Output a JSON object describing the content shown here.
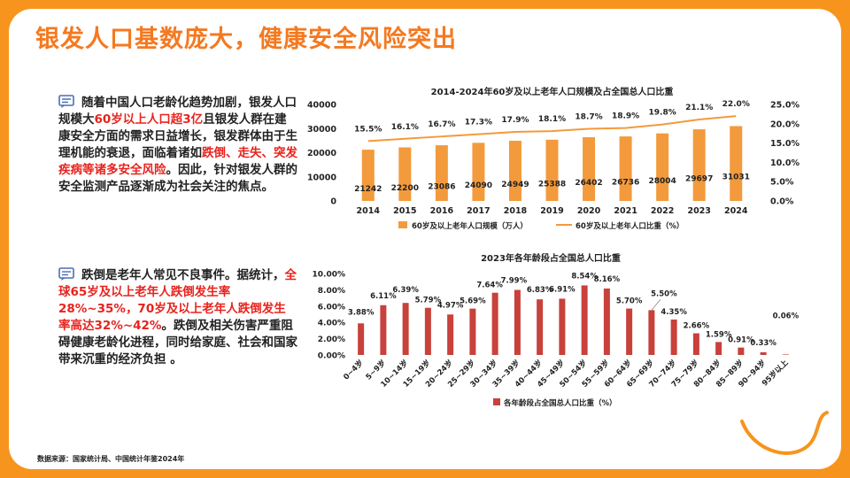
{
  "title": "银发人口基数庞大，健康安全风险突出",
  "paragraph1": {
    "segments": [
      {
        "text": "随着中国人口老龄化趋势加剧，银发人口规模大",
        "red": false
      },
      {
        "text": "60岁以上人口超3亿",
        "red": true
      },
      {
        "text": "且银发人群在建康安全方面的需求日益增长，银发群体由于生理机能的衰退，面临着诸如",
        "red": false
      },
      {
        "text": "跌倒、走失、突发疾病等诸多安全风险",
        "red": true
      },
      {
        "text": "。因此，针对银发人群的安全监测产品逐渐成为社会关注的焦点。",
        "red": false
      }
    ]
  },
  "paragraph2": {
    "segments": [
      {
        "text": "跌倒是老年人常见不良事件。据统计，",
        "red": false
      },
      {
        "text": "全球65岁及以上老年人跌倒发生率28%~35%，70岁及以上老年人跌倒发生率高达32%~42%",
        "red": true
      },
      {
        "text": "。跌倒及相关伤害严重阻碍健康老龄化进程，同时给家庭、社会和国家带来沉重的经济负担 。",
        "red": false
      }
    ]
  },
  "source": "数据来源：国家统计局、中国统计年鉴2024年",
  "colors": {
    "accent": "#f47920",
    "bar_orange": "#f39a3c",
    "bar_red": "#c8413b",
    "red_text": "#e8231d"
  },
  "chart_data": [
    {
      "type": "bar",
      "title": "2014-2024年60岁及以上老年人口规模及占全国总人口比重",
      "categories": [
        "2014",
        "2015",
        "2016",
        "2017",
        "2018",
        "2019",
        "2020",
        "2021",
        "2022",
        "2023",
        "2024"
      ],
      "series": [
        {
          "name": "60岁及以上老年人口规模（万人）",
          "type": "bar",
          "axis": "left",
          "values": [
            21242,
            22200,
            23086,
            24090,
            24949,
            25388,
            26402,
            26736,
            28004,
            29697,
            31031
          ]
        },
        {
          "name": "60岁及以上老年人口比重（%）",
          "type": "line",
          "axis": "right",
          "values": [
            15.5,
            16.1,
            16.7,
            17.3,
            17.9,
            18.1,
            18.7,
            18.9,
            19.8,
            21.1,
            22.0
          ]
        }
      ],
      "bar_labels": [
        "21242",
        "22200",
        "23086",
        "24090",
        "24949",
        "25388",
        "26402",
        "26736",
        "28004",
        "29697",
        "31031"
      ],
      "line_labels": [
        "15.5%",
        "16.1%",
        "16.7%",
        "17.3%",
        "17.9%",
        "18.1%",
        "18.7%",
        "18.9%",
        "19.8%",
        "21.1%",
        "22.0%"
      ],
      "y_left": {
        "min": 0,
        "max": 40000,
        "ticks": [
          "0",
          "10000",
          "20000",
          "30000",
          "40000"
        ]
      },
      "y_right": {
        "min": 0,
        "max": 25,
        "ticks": [
          "0.0%",
          "5.0%",
          "10.0%",
          "15.0%",
          "20.0%",
          "25.0%"
        ]
      },
      "legend_position": "bottom"
    },
    {
      "type": "bar",
      "title": "2023年各年龄段占全国总人口比重",
      "categories": [
        "0~4岁",
        "5~9岁",
        "10~14岁",
        "15~19岁",
        "20~24岁",
        "25~29岁",
        "30~34岁",
        "35~39岁",
        "40~44岁",
        "45~49岁",
        "50~54岁",
        "55~59岁",
        "60~64岁",
        "65~69岁",
        "70~74岁",
        "75~79岁",
        "80~84岁",
        "85~89岁",
        "90~94岁",
        "95岁以上"
      ],
      "series": [
        {
          "name": "各年龄段占全国总人口比重（%）",
          "values": [
            3.88,
            6.11,
            6.39,
            5.79,
            4.97,
            5.69,
            7.64,
            7.99,
            6.83,
            6.91,
            8.54,
            8.16,
            5.7,
            5.5,
            4.35,
            2.66,
            1.59,
            0.91,
            0.33,
            0.06
          ]
        }
      ],
      "labels": [
        "3.88%",
        "6.11%",
        "6.39%",
        "5.79%",
        "4.97%",
        "5.69%",
        "7.64%",
        "7.99%",
        "6.83%",
        "6.91%",
        "8.54%",
        "8.16%",
        "5.70%",
        "5.50%",
        "4.35%",
        "2.66%",
        "1.59%",
        "0.91%",
        "0.33%",
        "0.06%"
      ],
      "y": {
        "min": 0,
        "max": 10,
        "ticks": [
          "0.00%",
          "2.00%",
          "4.00%",
          "6.00%",
          "8.00%",
          "10.00%"
        ]
      },
      "legend_position": "bottom"
    }
  ]
}
